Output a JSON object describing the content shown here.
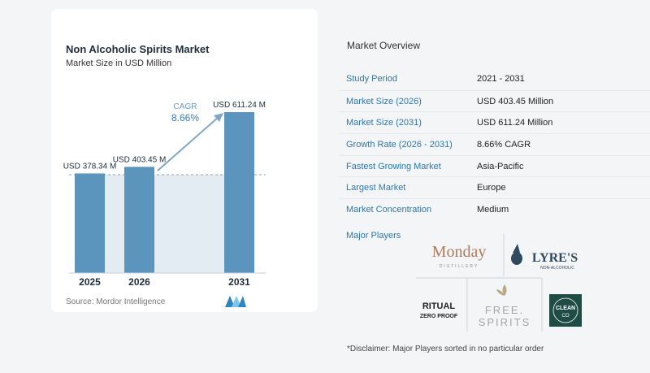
{
  "card": {
    "title": "Non Alcoholic Spirits Market",
    "subtitle": "Market Size in USD Million",
    "source": "Source:  Mordor Intelligence"
  },
  "chart_data": {
    "type": "bar",
    "categories": [
      "2025",
      "2026",
      "2031"
    ],
    "values": [
      378.34,
      403.45,
      611.24
    ],
    "value_labels": [
      "USD 378.34 M",
      "USD 403.45 M",
      "USD 611.24 M"
    ],
    "cagr_label": "CAGR",
    "cagr_value": "8.66%",
    "bar_color": "#5b94bc",
    "shade_color": "#e4ecf3",
    "arrow_color": "#7fa6c4"
  },
  "overview": {
    "title": "Market Overview",
    "rows": [
      {
        "key": "Study Period",
        "value": "2021 - 2031"
      },
      {
        "key": "Market Size (2026)",
        "value": "USD 403.45 Million"
      },
      {
        "key": "Market Size (2031)",
        "value": "USD 611.24 Million"
      },
      {
        "key": "Growth Rate (2026 - 2031)",
        "value": "8.66% CAGR"
      },
      {
        "key": "Fastest Growing Market",
        "value": "Asia-Pacific"
      },
      {
        "key": "Largest Market",
        "value": "Europe"
      },
      {
        "key": "Market Concentration",
        "value": "Medium"
      }
    ],
    "players_label": "Major Players",
    "players": {
      "monday": {
        "name": "Monday",
        "sub": "DISTILLERY"
      },
      "lyres": {
        "name": "LYRE'S",
        "sub": "NON-ALCOHOLIC"
      },
      "ritual": {
        "line1": "RITUAL",
        "line2": "ZERO PROOF"
      },
      "free": {
        "line1": "FREE.",
        "line2": "SPIRITS"
      },
      "clean": {
        "line1": "CLEAN",
        "line2": "CO"
      }
    },
    "disclaimer": "*Disclaimer: Major Players sorted in no particular order"
  }
}
